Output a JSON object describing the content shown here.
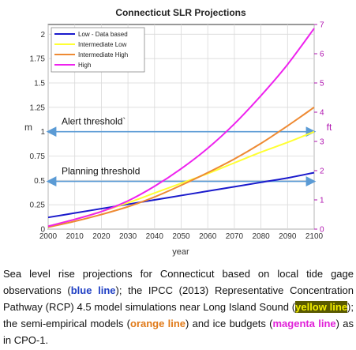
{
  "chart_data": {
    "type": "line",
    "title": "Connecticut SLR Projections",
    "xlabel": "year",
    "ylabel_left": "m",
    "ylabel_right": "ft",
    "xlim": [
      2000,
      2100
    ],
    "ylim_left": [
      0,
      2.1
    ],
    "ylim_right": [
      0,
      7.0
    ],
    "x_ticks": [
      "2000",
      "2010",
      "2020",
      "2030",
      "2040",
      "2050",
      "2060",
      "2070",
      "2080",
      "2090",
      "2100"
    ],
    "y_ticks_left": [
      "0",
      "0.25",
      "0.5",
      "0.75",
      "1",
      "1.25",
      "1.5",
      "1.75",
      "2"
    ],
    "y_ticks_right": [
      "0",
      "1",
      "2",
      "3",
      "4",
      "5",
      "6",
      "7"
    ],
    "grid": true,
    "legend_position": "top-left",
    "x": [
      2000,
      2010,
      2020,
      2030,
      2040,
      2050,
      2060,
      2070,
      2080,
      2090,
      2100
    ],
    "series": [
      {
        "name": "Low - Data based",
        "color": "#1a1acc",
        "values": [
          0.12,
          0.165,
          0.21,
          0.255,
          0.3,
          0.345,
          0.39,
          0.435,
          0.48,
          0.525,
          0.58
        ]
      },
      {
        "name": "Intermediate Low",
        "color": "#ffff33",
        "values": [
          0.03,
          0.1,
          0.18,
          0.27,
          0.37,
          0.47,
          0.57,
          0.68,
          0.79,
          0.89,
          1.0
        ]
      },
      {
        "name": "Intermediate High",
        "color": "#ee8a33",
        "values": [
          0.02,
          0.08,
          0.15,
          0.23,
          0.33,
          0.45,
          0.58,
          0.72,
          0.88,
          1.06,
          1.25
        ]
      },
      {
        "name": "High",
        "color": "#ee22ee",
        "values": [
          0.03,
          0.1,
          0.18,
          0.29,
          0.44,
          0.62,
          0.83,
          1.08,
          1.37,
          1.69,
          2.06
        ]
      }
    ],
    "annotations": [
      {
        "label": "Alert threshold`",
        "value": 1.0
      },
      {
        "label": "Planning threshold",
        "value": 0.49
      }
    ]
  },
  "caption": {
    "p1": "Sea level rise projections for Connecticut based on local tide gage observations (",
    "blue": "blue line",
    "p2": "); the IPCC (2013) Representative Concentration Pathway (RCP) 4.5 model simulations near Long Island Sound (",
    "yellow": "yellow line",
    "p3": "); the semi-empirical models (",
    "orange": "orange line",
    "p4": ") and ice budgets (",
    "magenta": "magenta line",
    "p5": ") as in CPO-1."
  }
}
